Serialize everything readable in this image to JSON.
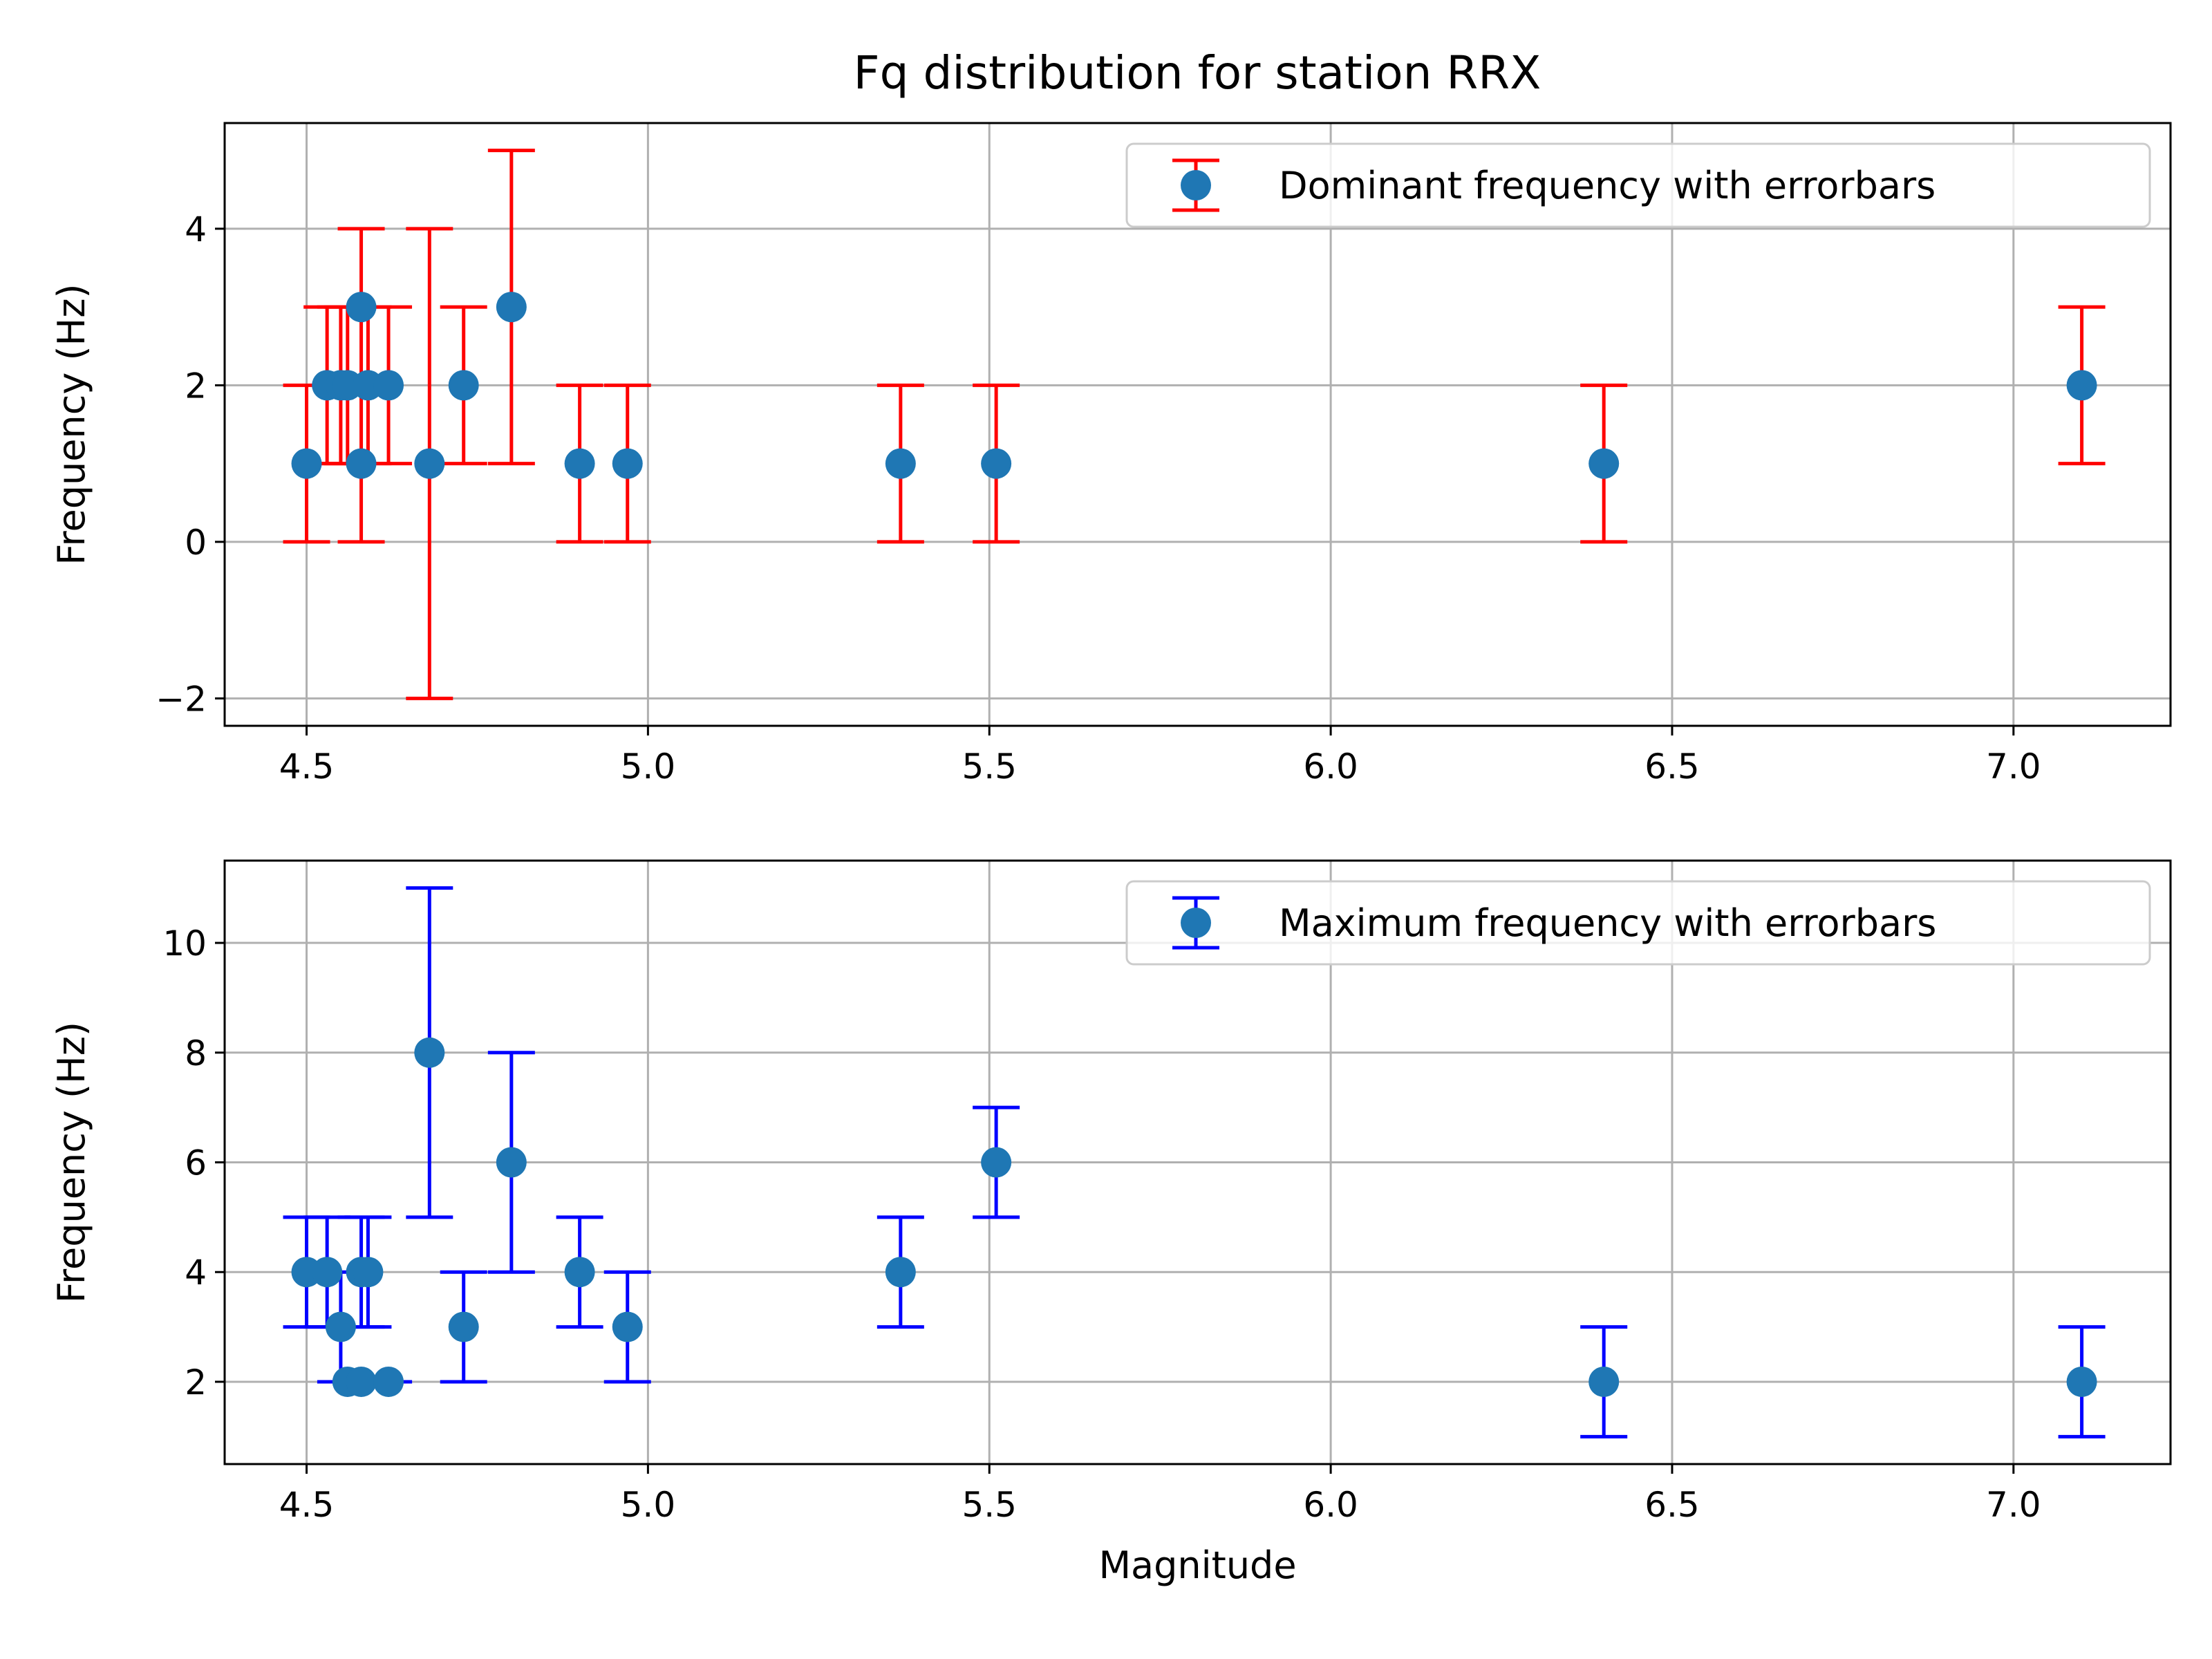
{
  "figure": {
    "title": "Fq distribution for station RRX"
  },
  "colors": {
    "marker": "#1f77b4",
    "grid": "#b0b0b0",
    "axes": "#000000"
  },
  "chart_data": [
    {
      "type": "scatter",
      "name": "dominant",
      "title": "Fq distribution for station RRX",
      "xlabel": "",
      "ylabel": "Frequency (Hz)",
      "xlim": [
        4.38,
        7.23
      ],
      "ylim": [
        -2.35,
        5.35
      ],
      "xticks": [
        4.5,
        5.0,
        5.5,
        6.0,
        6.5,
        7.0
      ],
      "xtick_labels": [
        "4.5",
        "5.0",
        "5.5",
        "6.0",
        "6.5",
        "7.0"
      ],
      "yticks": [
        -2,
        0,
        2,
        4
      ],
      "ytick_labels": [
        "−2",
        "0",
        "2",
        "4"
      ],
      "grid": true,
      "legend_position": "top-right",
      "error_color": "#ff0000",
      "series": [
        {
          "name": "Dominant frequency with errorbars",
          "points": [
            {
              "x": 4.5,
              "y": 1,
              "ylow": 0,
              "yhigh": 2
            },
            {
              "x": 4.53,
              "y": 2,
              "ylow": 1,
              "yhigh": 3
            },
            {
              "x": 4.55,
              "y": 2,
              "ylow": 1,
              "yhigh": 3
            },
            {
              "x": 4.56,
              "y": 2,
              "ylow": 1,
              "yhigh": 3
            },
            {
              "x": 4.58,
              "y": 3,
              "ylow": 2,
              "yhigh": 4
            },
            {
              "x": 4.58,
              "y": 1,
              "ylow": 0,
              "yhigh": 2
            },
            {
              "x": 4.59,
              "y": 2,
              "ylow": 1,
              "yhigh": 3
            },
            {
              "x": 4.62,
              "y": 2,
              "ylow": 1,
              "yhigh": 3
            },
            {
              "x": 4.68,
              "y": 1,
              "ylow": -2,
              "yhigh": 4
            },
            {
              "x": 4.73,
              "y": 2,
              "ylow": 1,
              "yhigh": 3
            },
            {
              "x": 4.8,
              "y": 3,
              "ylow": 1,
              "yhigh": 5
            },
            {
              "x": 4.9,
              "y": 1,
              "ylow": 0,
              "yhigh": 2
            },
            {
              "x": 4.97,
              "y": 1,
              "ylow": 0,
              "yhigh": 2
            },
            {
              "x": 5.37,
              "y": 1,
              "ylow": 0,
              "yhigh": 2
            },
            {
              "x": 5.51,
              "y": 1,
              "ylow": 0,
              "yhigh": 2
            },
            {
              "x": 6.4,
              "y": 1,
              "ylow": 0,
              "yhigh": 2
            },
            {
              "x": 7.1,
              "y": 2,
              "ylow": 1,
              "yhigh": 3
            }
          ]
        }
      ]
    },
    {
      "type": "scatter",
      "name": "maximum",
      "title": "",
      "xlabel": "Magnitude",
      "ylabel": "Frequency (Hz)",
      "xlim": [
        4.38,
        7.23
      ],
      "ylim": [
        0.5,
        11.5
      ],
      "xticks": [
        4.5,
        5.0,
        5.5,
        6.0,
        6.5,
        7.0
      ],
      "xtick_labels": [
        "4.5",
        "5.0",
        "5.5",
        "6.0",
        "6.5",
        "7.0"
      ],
      "yticks": [
        2,
        4,
        6,
        8,
        10
      ],
      "ytick_labels": [
        "2",
        "4",
        "6",
        "8",
        "10"
      ],
      "grid": true,
      "legend_position": "top-right",
      "error_color": "#0000ff",
      "series": [
        {
          "name": "Maximum frequency with errorbars",
          "points": [
            {
              "x": 4.5,
              "y": 4,
              "ylow": 3,
              "yhigh": 5
            },
            {
              "x": 4.53,
              "y": 4,
              "ylow": 3,
              "yhigh": 5
            },
            {
              "x": 4.55,
              "y": 3,
              "ylow": 2,
              "yhigh": 4
            },
            {
              "x": 4.56,
              "y": 2,
              "ylow": 2,
              "yhigh": 2
            },
            {
              "x": 4.58,
              "y": 4,
              "ylow": 3,
              "yhigh": 5
            },
            {
              "x": 4.58,
              "y": 2,
              "ylow": 2,
              "yhigh": 2
            },
            {
              "x": 4.59,
              "y": 4,
              "ylow": 3,
              "yhigh": 5
            },
            {
              "x": 4.62,
              "y": 2,
              "ylow": 2,
              "yhigh": 2
            },
            {
              "x": 4.68,
              "y": 8,
              "ylow": 5,
              "yhigh": 11
            },
            {
              "x": 4.73,
              "y": 3,
              "ylow": 2,
              "yhigh": 4
            },
            {
              "x": 4.8,
              "y": 6,
              "ylow": 4,
              "yhigh": 8
            },
            {
              "x": 4.9,
              "y": 4,
              "ylow": 3,
              "yhigh": 5
            },
            {
              "x": 4.97,
              "y": 3,
              "ylow": 2,
              "yhigh": 4
            },
            {
              "x": 5.37,
              "y": 4,
              "ylow": 3,
              "yhigh": 5
            },
            {
              "x": 5.51,
              "y": 6,
              "ylow": 5,
              "yhigh": 7
            },
            {
              "x": 6.4,
              "y": 2,
              "ylow": 1,
              "yhigh": 3
            },
            {
              "x": 7.1,
              "y": 2,
              "ylow": 1,
              "yhigh": 3
            }
          ]
        }
      ]
    }
  ]
}
